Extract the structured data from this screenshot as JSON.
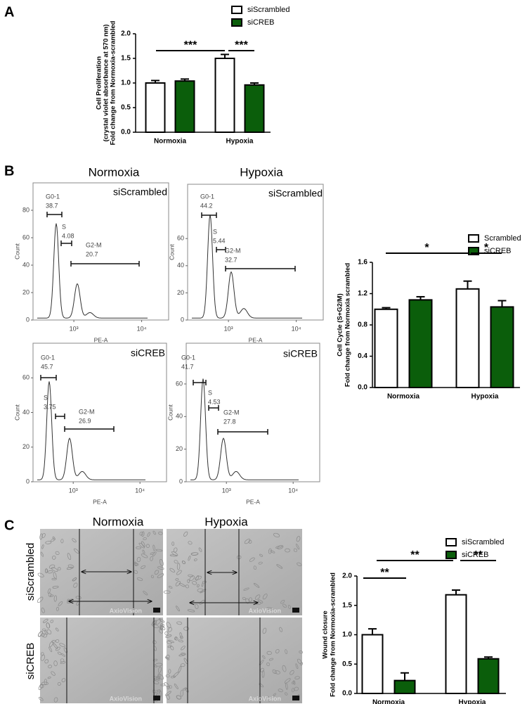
{
  "panel_labels": [
    "A",
    "B",
    "C"
  ],
  "flow_headers": [
    "Normoxia",
    "Hypoxia"
  ],
  "wound_headers": [
    "Normoxia",
    "Hypoxia"
  ],
  "wound_rows": [
    "siScrambled",
    "siCREB"
  ],
  "watermark": "AxioVision",
  "chart_data": [
    {
      "type": "bar",
      "ylabel": [
        "Cell Proliferation",
        "(crystal violet absorbance at 570 nm)",
        "Fold change from Normoxia-scrambled"
      ],
      "categories": [
        "Normoxia",
        "Hypoxia"
      ],
      "series": [
        {
          "name": "siScrambled",
          "color": "#ffffff",
          "values": [
            1.0,
            1.5
          ],
          "errors": [
            0.05,
            0.08
          ]
        },
        {
          "name": "siCREB",
          "color": "#0b5e0b",
          "values": [
            1.04,
            0.96
          ],
          "errors": [
            0.04,
            0.04
          ]
        }
      ],
      "ylim": [
        0,
        2
      ],
      "yticks": [
        {
          "value": 0,
          "label": "0.0"
        },
        0.5,
        {
          "value": 1,
          "label": "1.0"
        },
        1.5,
        {
          "value": 2,
          "label": "2.0"
        }
      ],
      "annotations": [
        "***",
        "***"
      ],
      "legend": "top-right"
    },
    {
      "type": "flow",
      "label": "siScrambled",
      "xlabel": "PE-A",
      "ylabel": "Count",
      "xscale": "log",
      "xlim": [
        250,
        25000
      ],
      "xticks": [
        {
          "value": 1000,
          "label": "10³"
        },
        {
          "value": 10000,
          "label": "10⁴"
        }
      ],
      "ylim": [
        0,
        100
      ],
      "yticks": [
        0,
        20,
        40,
        60,
        80
      ],
      "gates": [
        {
          "name": "G0-1",
          "value": 38.7
        },
        {
          "name": "S",
          "value": 4.08
        },
        {
          "name": "G2-M",
          "value": 20.7
        }
      ]
    },
    {
      "type": "flow",
      "label": "siScrambled",
      "xlabel": "PE-A",
      "ylabel": "Count",
      "xscale": "log",
      "xlim": [
        250,
        25000
      ],
      "xticks": [
        {
          "value": 1000,
          "label": "10³"
        },
        {
          "value": 10000,
          "label": "10⁴"
        }
      ],
      "ylim": [
        0,
        100
      ],
      "yticks": [
        0,
        20,
        40,
        60
      ],
      "gates": [
        {
          "name": "G0-1",
          "value": 44.2
        },
        {
          "name": "S",
          "value": 5.44
        },
        {
          "name": "G2-M",
          "value": 32.7
        }
      ]
    },
    {
      "type": "flow",
      "label": "siCREB",
      "xlabel": "PE-A",
      "ylabel": "Count",
      "xscale": "log",
      "xlim": [
        250,
        25000
      ],
      "xticks": [
        {
          "value": 1000,
          "label": "10³"
        },
        {
          "value": 10000,
          "label": "10⁴"
        }
      ],
      "ylim": [
        0,
        80
      ],
      "yticks": [
        0,
        20,
        40,
        60
      ],
      "gates": [
        {
          "name": "G0-1",
          "value": 45.7
        },
        {
          "name": "S",
          "value": 3.75
        },
        {
          "name": "G2-M",
          "value": 26.9
        }
      ]
    },
    {
      "type": "flow",
      "label": "siCREB",
      "xlabel": "PE-A",
      "ylabel": "Count",
      "xscale": "log",
      "xlim": [
        250,
        25000
      ],
      "xticks": [
        {
          "value": 1000,
          "label": "10³"
        },
        {
          "value": 10000,
          "label": "10⁴"
        }
      ],
      "ylim": [
        0,
        85
      ],
      "yticks": [
        0,
        20,
        40,
        60
      ],
      "gates": [
        {
          "name": "G0-1",
          "value": 41.7
        },
        {
          "name": "S",
          "value": 4.53
        },
        {
          "name": "G2-M",
          "value": 27.8
        }
      ]
    },
    {
      "type": "bar",
      "ylabel": [
        "Cell Cycle (S+G2/M)",
        "Fold change from Normoxia scrambled"
      ],
      "categories": [
        "Normoxia",
        "Hypoxia"
      ],
      "series": [
        {
          "name": "Scrambled",
          "color": "#ffffff",
          "values": [
            1.0,
            1.26
          ],
          "errors": [
            0.02,
            0.1
          ]
        },
        {
          "name": "siCREB",
          "color": "#0b5e0b",
          "values": [
            1.12,
            1.03
          ],
          "errors": [
            0.04,
            0.08
          ]
        }
      ],
      "ylim": [
        0,
        1.6
      ],
      "yticks": [
        {
          "value": 0,
          "label": "0.0"
        },
        0.4,
        0.8,
        1.2,
        1.6
      ],
      "annotations": [
        "*",
        "*"
      ],
      "legend": "top-right"
    },
    {
      "type": "bar",
      "ylabel": [
        "Wound closure",
        "Fold change from Normoxia-scrambled"
      ],
      "categories": [
        "Normoxia",
        "Hypoxia"
      ],
      "series": [
        {
          "name": "siScrambled",
          "color": "#ffffff",
          "values": [
            1.0,
            1.68
          ],
          "errors": [
            0.1,
            0.08
          ]
        },
        {
          "name": "siCREB",
          "color": "#0b5e0b",
          "values": [
            0.22,
            0.59
          ],
          "errors": [
            0.13,
            0.03
          ]
        }
      ],
      "ylim": [
        0,
        2
      ],
      "yticks": [
        {
          "value": 0,
          "label": "0.0"
        },
        0.5,
        {
          "value": 1,
          "label": "1.0"
        },
        1.5,
        {
          "value": 2,
          "label": "2.0"
        }
      ],
      "annotations": [
        "**",
        "**",
        "**"
      ],
      "legend": "top-right"
    }
  ]
}
